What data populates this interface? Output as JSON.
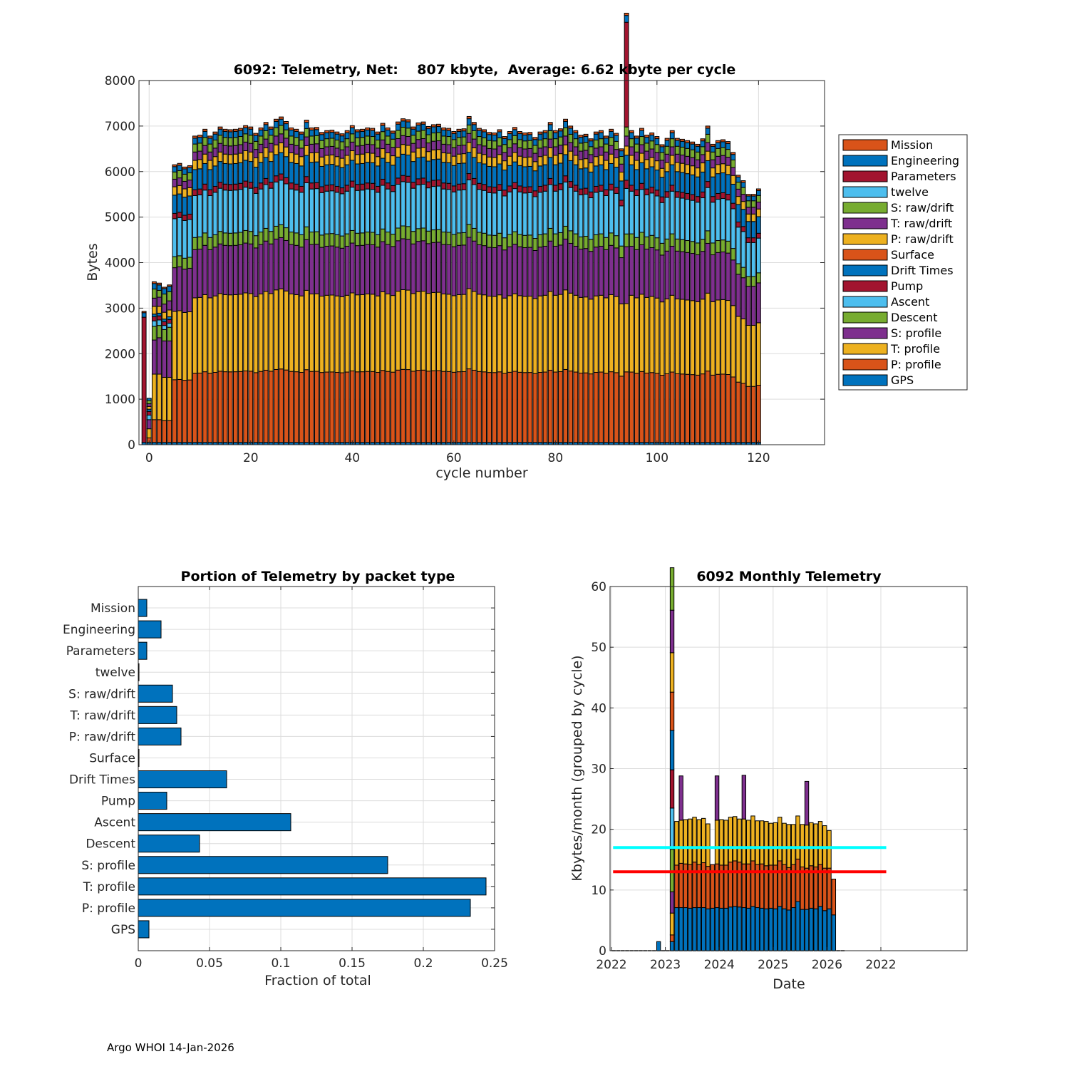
{
  "footer": "Argo WHOI 14-Jan-2026",
  "layers": [
    {
      "name": "GPS",
      "color": "#0072BD"
    },
    {
      "name": "P: profile",
      "color": "#D95319"
    },
    {
      "name": "T: profile",
      "color": "#EDB120"
    },
    {
      "name": "S: profile",
      "color": "#7E2F8E"
    },
    {
      "name": "Descent",
      "color": "#77AC30"
    },
    {
      "name": "Ascent",
      "color": "#4DBEEE"
    },
    {
      "name": "Pump",
      "color": "#A2142F"
    },
    {
      "name": "Drift Times",
      "color": "#0072BD"
    },
    {
      "name": "Surface",
      "color": "#D95319"
    },
    {
      "name": "P: raw/drift",
      "color": "#EDB120"
    },
    {
      "name": "T: raw/drift",
      "color": "#7E2F8E"
    },
    {
      "name": "S: raw/drift",
      "color": "#77AC30"
    },
    {
      "name": "twelve",
      "color": "#4DBEEE"
    },
    {
      "name": "Parameters",
      "color": "#A2142F"
    },
    {
      "name": "Engineering",
      "color": "#0072BD"
    },
    {
      "name": "Mission",
      "color": "#D95319"
    }
  ],
  "chart_data": [
    {
      "type": "bar",
      "stacked": true,
      "title": "6092: Telemetry, Net:    807 kbyte,  Average: 6.62 kbyte per cycle",
      "xlabel": "cycle number",
      "ylabel": "Bytes",
      "xlim": [
        -2,
        133
      ],
      "ylim": [
        0,
        8000
      ],
      "xticks": [
        0,
        20,
        40,
        60,
        80,
        100,
        120
      ],
      "yticks": [
        0,
        1000,
        2000,
        3000,
        4000,
        5000,
        6000,
        7000,
        8000
      ],
      "grid": true,
      "legend": {
        "position": "right-outside",
        "entries": [
          "Mission",
          "Engineering",
          "Parameters",
          "twelve",
          "S: raw/drift",
          "T: raw/drift",
          "P: raw/drift",
          "Surface",
          "Drift Times",
          "Pump",
          "Ascent",
          "Descent",
          "S: profile",
          "T: profile",
          "P: profile",
          "GPS"
        ]
      },
      "layer_order_bottom_to_top": [
        "GPS",
        "P: profile",
        "T: profile",
        "S: profile",
        "Descent",
        "Ascent",
        "Pump",
        "Drift Times",
        "Surface",
        "P: raw/drift",
        "T: raw/drift",
        "S: raw/drift",
        "twelve",
        "Parameters",
        "Engineering",
        "Mission"
      ],
      "typical_layer_bytes": [
        50,
        1650,
        1800,
        1150,
        290,
        1000,
        140,
        480,
        0,
        220,
        200,
        190,
        0,
        0,
        140,
        50
      ],
      "special_cycles": {
        "-1": [
          50,
          0,
          0,
          0,
          0,
          0,
          0,
          0,
          0,
          0,
          0,
          0,
          0,
          2750,
          100,
          30
        ],
        "0": [
          50,
          100,
          200,
          200,
          0,
          100,
          80,
          50,
          0,
          60,
          60,
          70,
          0,
          0,
          50,
          0
        ],
        "1": [
          50,
          500,
          1000,
          750,
          300,
          120,
          90,
          60,
          0,
          170,
          180,
          200,
          0,
          0,
          120,
          40
        ],
        "2": [
          50,
          500,
          1000,
          800,
          270,
          120,
          90,
          60,
          0,
          150,
          200,
          150,
          0,
          0,
          120,
          40
        ],
        "3": [
          50,
          480,
          950,
          800,
          250,
          90,
          80,
          60,
          0,
          150,
          180,
          220,
          0,
          0,
          120,
          30
        ],
        "4": [
          50,
          480,
          950,
          800,
          300,
          90,
          80,
          60,
          0,
          150,
          200,
          200,
          0,
          0,
          120,
          30
        ],
        "94": [
          50,
          1550,
          1500,
          1250,
          280,
          1000,
          180,
          550,
          0,
          200,
          220,
          200,
          0,
          2300,
          150,
          50
        ]
      },
      "cycles": [
        -1,
        0,
        1,
        2,
        3,
        4,
        5,
        6,
        7,
        8,
        9,
        10,
        11,
        12,
        13,
        14,
        15,
        16,
        17,
        18,
        19,
        20,
        21,
        22,
        23,
        24,
        25,
        26,
        27,
        28,
        29,
        30,
        31,
        32,
        33,
        34,
        35,
        36,
        37,
        38,
        39,
        40,
        41,
        42,
        43,
        44,
        45,
        46,
        47,
        48,
        49,
        50,
        51,
        52,
        53,
        54,
        55,
        56,
        57,
        58,
        59,
        60,
        61,
        62,
        63,
        64,
        65,
        66,
        67,
        68,
        69,
        70,
        71,
        72,
        73,
        74,
        75,
        76,
        77,
        78,
        79,
        80,
        81,
        82,
        83,
        84,
        85,
        86,
        87,
        88,
        89,
        90,
        91,
        92,
        93,
        94,
        95,
        96,
        97,
        98,
        99,
        100,
        101,
        102,
        103,
        104,
        105,
        106,
        107,
        108,
        109,
        110,
        111,
        112,
        113,
        114,
        115,
        116,
        117,
        118,
        119,
        120
      ],
      "totals": [
        2930,
        1020,
        3400,
        3350,
        3270,
        3350,
        6150,
        6180,
        6100,
        6130,
        6780,
        6800,
        6930,
        6780,
        6870,
        6980,
        6930,
        6920,
        6930,
        6950,
        7010,
        6980,
        6840,
        6960,
        7080,
        6980,
        7150,
        7200,
        7100,
        6960,
        6930,
        6870,
        7130,
        6960,
        6970,
        6860,
        6900,
        6910,
        6870,
        6830,
        6900,
        7010,
        6920,
        6930,
        6960,
        6950,
        6870,
        7060,
        6960,
        6890,
        7090,
        7160,
        7140,
        6980,
        7070,
        7090,
        6990,
        7030,
        7040,
        6960,
        6950,
        6880,
        6930,
        6940,
        7210,
        7080,
        6950,
        6920,
        6860,
        6850,
        6920,
        6770,
        6880,
        6970,
        6880,
        6850,
        6860,
        6750,
        6870,
        6900,
        7080,
        6900,
        6940,
        7150,
        7000,
        6900,
        6800,
        6820,
        6720,
        6870,
        6900,
        6780,
        6930,
        6840,
        6500,
        7780,
        6900,
        6780,
        6950,
        6800,
        6850,
        6770,
        6590,
        6730,
        6900,
        6730,
        6710,
        6680,
        6650,
        6600,
        6720,
        7000,
        6600,
        6680,
        6700,
        6660,
        6420,
        5920,
        5800,
        5500,
        5500,
        5620
      ],
      "spike_note": "cycle 94 Parameters spike to ~7780 total"
    },
    {
      "type": "bar",
      "orientation": "horizontal",
      "title": "Portion of Telemetry by packet type",
      "xlabel": "Fraction of total",
      "ylabel": "",
      "xlim": [
        0,
        0.25
      ],
      "xticks": [
        0,
        0.05,
        0.1,
        0.15,
        0.2,
        0.25
      ],
      "xtick_labels": [
        "0",
        "0.05",
        "0.1",
        "0.15",
        "0.2",
        "0.25"
      ],
      "grid": true,
      "color": "#0072BD",
      "categories": [
        "Mission",
        "Engineering",
        "Parameters",
        "twelve",
        "S: raw/drift",
        "T: raw/drift",
        "P: raw/drift",
        "Surface",
        "Drift Times",
        "Pump",
        "Ascent",
        "Descent",
        "S: profile",
        "T: profile",
        "P: profile",
        "GPS"
      ],
      "values": [
        0.006,
        0.016,
        0.006,
        0.0005,
        0.024,
        0.027,
        0.03,
        0.0005,
        0.062,
        0.02,
        0.107,
        0.043,
        0.175,
        0.244,
        0.233,
        0.0075
      ]
    },
    {
      "type": "bar",
      "stacked": true,
      "title": "6092 Monthly Telemetry",
      "xlabel": "Date",
      "ylabel": "Kbytes/month (grouped by cycle)",
      "ylim": [
        0,
        60
      ],
      "yticks": [
        0,
        10,
        20,
        30,
        40,
        50,
        60
      ],
      "xtick_labels": [
        "2022",
        "2023",
        "2024",
        "2025",
        "2026",
        "2022"
      ],
      "xlim_years": [
        2022,
        2030.7
      ],
      "grid": true,
      "reference_lines": [
        {
          "value": 17,
          "color": "#00FFFF",
          "x_range": [
            2022.03,
            2027.1
          ]
        },
        {
          "value": 13,
          "color": "#FF0000",
          "x_range": [
            2022.03,
            2027.1
          ]
        }
      ],
      "months_from_2022": [
        0,
        1,
        2,
        3,
        4,
        5,
        6,
        7,
        8,
        9,
        10,
        11,
        12,
        13,
        14,
        15,
        16,
        17,
        18,
        19,
        20,
        21,
        22,
        23,
        24,
        25,
        26,
        27,
        28,
        29,
        30,
        31,
        32,
        33,
        34,
        35,
        36,
        37,
        38,
        39,
        40,
        41,
        42,
        43,
        44,
        45,
        46,
        47,
        48,
        49,
        50,
        51,
        52,
        53,
        54,
        55,
        56,
        57,
        58,
        59,
        60,
        61,
        62,
        63,
        64,
        65,
        66,
        67,
        68,
        69,
        70,
        71,
        72,
        73,
        74,
        75,
        76,
        77,
        78,
        79,
        80,
        81,
        82,
        83,
        84,
        85,
        86,
        87,
        88,
        89,
        90,
        91,
        92,
        93,
        94,
        95,
        96,
        97,
        98,
        99,
        100,
        101,
        102,
        103,
        104,
        105,
        106,
        107,
        108,
        109,
        110,
        111,
        112,
        113,
        114,
        115,
        116,
        117,
        118,
        119,
        120,
        121,
        122,
        123,
        124,
        125,
        126,
        127,
        128,
        129,
        130,
        131,
        132
      ],
      "first_month_stack": {
        "month_index": 13,
        "segments": [
          {
            "value": 1.5,
            "color": "#0072BD"
          },
          {
            "value": 1.1,
            "color": "#D95319"
          },
          {
            "value": 3.6,
            "color": "#EDB120"
          },
          {
            "value": 3.5,
            "color": "#7E2F8E"
          },
          {
            "value": 7.0,
            "color": "#77AC30"
          },
          {
            "value": 6.8,
            "color": "#4DBEEE"
          },
          {
            "value": 6.3,
            "color": "#A2142F"
          },
          {
            "value": 6.5,
            "color": "#0072BD"
          },
          {
            "value": 6.3,
            "color": "#D95319"
          },
          {
            "value": 6.5,
            "color": "#EDB120"
          },
          {
            "value": 7.0,
            "color": "#7E2F8E"
          },
          {
            "value": 7.0,
            "color": "#77AC30"
          }
        ]
      },
      "pre_month": {
        "month_index": 10,
        "value": 1.5,
        "color": "#0072BD"
      },
      "monthly": [
        {
          "m": 14,
          "blue": 7.1,
          "orange": 7.0,
          "yellow": 7.2,
          "purple": 0
        },
        {
          "m": 15,
          "blue": 7.1,
          "orange": 7.3,
          "yellow": 7.1,
          "purple": 7.3
        },
        {
          "m": 16,
          "blue": 7.1,
          "orange": 7.2,
          "yellow": 7.3,
          "purple": 0
        },
        {
          "m": 17,
          "blue": 7.0,
          "orange": 7.2,
          "yellow": 7.5,
          "purple": 0
        },
        {
          "m": 18,
          "blue": 7.1,
          "orange": 7.5,
          "yellow": 7.4,
          "purple": 0
        },
        {
          "m": 19,
          "blue": 7.1,
          "orange": 7.1,
          "yellow": 7.4,
          "purple": 0
        },
        {
          "m": 20,
          "blue": 7.1,
          "orange": 7.4,
          "yellow": 7.3,
          "purple": 0
        },
        {
          "m": 21,
          "blue": 6.9,
          "orange": 7.0,
          "yellow": 7.0,
          "purple": 0
        },
        {
          "m": 22,
          "blue": 7.0,
          "orange": 7.2,
          "yellow": 0,
          "purple": 0
        },
        {
          "m": 23,
          "blue": 7.1,
          "orange": 7.2,
          "yellow": 7.2,
          "purple": 7.3
        },
        {
          "m": 24,
          "blue": 7.0,
          "orange": 7.1,
          "yellow": 7.5,
          "purple": 0
        },
        {
          "m": 25,
          "blue": 7.0,
          "orange": 7.1,
          "yellow": 7.4,
          "purple": 0
        },
        {
          "m": 26,
          "blue": 7.2,
          "orange": 7.4,
          "yellow": 7.4,
          "purple": 0
        },
        {
          "m": 27,
          "blue": 7.3,
          "orange": 7.5,
          "yellow": 7.3,
          "purple": 0
        },
        {
          "m": 28,
          "blue": 7.2,
          "orange": 7.4,
          "yellow": 7.1,
          "purple": 0
        },
        {
          "m": 29,
          "blue": 7.1,
          "orange": 7.2,
          "yellow": 7.4,
          "purple": 7.2
        },
        {
          "m": 30,
          "blue": 7.0,
          "orange": 7.3,
          "yellow": 7.2,
          "purple": 0
        },
        {
          "m": 31,
          "blue": 7.3,
          "orange": 7.5,
          "yellow": 7.4,
          "purple": 0
        },
        {
          "m": 32,
          "blue": 7.1,
          "orange": 7.1,
          "yellow": 7.2,
          "purple": 0
        },
        {
          "m": 33,
          "blue": 7.0,
          "orange": 7.3,
          "yellow": 7.1,
          "purple": 0
        },
        {
          "m": 34,
          "blue": 6.9,
          "orange": 7.1,
          "yellow": 7.3,
          "purple": 0
        },
        {
          "m": 35,
          "blue": 7.0,
          "orange": 7.1,
          "yellow": 6.9,
          "purple": 0
        },
        {
          "m": 36,
          "blue": 6.9,
          "orange": 7.2,
          "yellow": 7.0,
          "purple": 0
        },
        {
          "m": 37,
          "blue": 7.3,
          "orange": 7.5,
          "yellow": 7.2,
          "purple": 0
        },
        {
          "m": 38,
          "blue": 6.9,
          "orange": 7.3,
          "yellow": 6.8,
          "purple": 0
        },
        {
          "m": 39,
          "blue": 6.7,
          "orange": 7.0,
          "yellow": 7.1,
          "purple": 0
        },
        {
          "m": 40,
          "blue": 7.1,
          "orange": 7.1,
          "yellow": 6.6,
          "purple": 0
        },
        {
          "m": 41,
          "blue": 8.1,
          "orange": 7.0,
          "yellow": 7.1,
          "purple": 0
        },
        {
          "m": 42,
          "blue": 6.8,
          "orange": 7.0,
          "yellow": 7.0,
          "purple": 0
        },
        {
          "m": 43,
          "blue": 6.8,
          "orange": 6.8,
          "yellow": 7.1,
          "purple": 7.2
        },
        {
          "m": 44,
          "blue": 7.0,
          "orange": 7.0,
          "yellow": 7.1,
          "purple": 0
        },
        {
          "m": 45,
          "blue": 6.9,
          "orange": 6.9,
          "yellow": 7.1,
          "purple": 0
        },
        {
          "m": 46,
          "blue": 7.3,
          "orange": 6.9,
          "yellow": 7.1,
          "purple": 0
        },
        {
          "m": 47,
          "blue": 6.6,
          "orange": 7.0,
          "yellow": 7.0,
          "purple": 0
        },
        {
          "m": 48,
          "blue": 6.9,
          "orange": 6.7,
          "yellow": 6.2,
          "purple": 0
        },
        {
          "m": 49,
          "blue": 5.9,
          "orange": 5.9,
          "yellow": 0,
          "purple": 0
        }
      ],
      "monthly_colors": {
        "blue": "#0072BD",
        "orange": "#D95319",
        "yellow": "#EDB120",
        "purple": "#7E2F8E"
      }
    }
  ]
}
